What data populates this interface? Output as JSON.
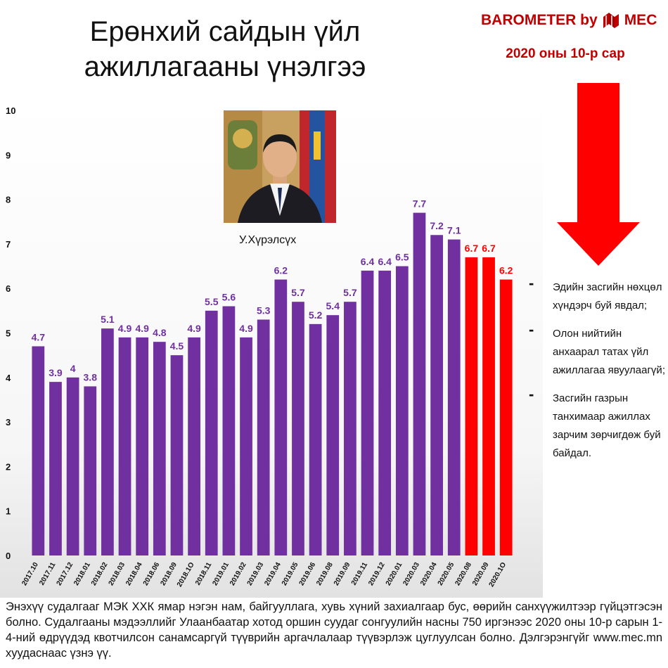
{
  "header": {
    "title_line1": "Ерөнхий сайдын үйл",
    "title_line2": "ажиллагааны үнэлгээ",
    "brand": "BAROMETER by",
    "brand_logo_text": "MEC",
    "subtitle": "2020 оны 10-р сар"
  },
  "photo": {
    "caption": "У.Хүрэлсүх"
  },
  "notes": [
    "Эдийн засгийн нөхцөл хүндэрч буй явдал;",
    "Олон нийтийн анхаарал татах үйл ажиллагаа явуулаагүй;",
    "Засгийн газрын танхимаар ажиллах зарчим зөрчигдөж буй байдал."
  ],
  "footer": "Энэхүү судалгааг МЭК ХХК ямар нэгэн нам, байгууллага, хувь хүний захиалгаар бус, өөрийн санхүүжилтээр гүйцэтгэсэн болно. Судалгааны мэдээллийг Улаанбаатар хотод оршин суудаг сонгуулийн насны 750 иргэнээс 2020 оны 10-р сарын 1-4-ний өдрүүдэд квотчилсон санамсаргүй түүврийн аргачлалаар түүвэрлэж цуглуулсан болно. Дэлгэрэнгүйг www.mec.mn хуудаснаас үзнэ үү.",
  "colors": {
    "bar": "#7030a0",
    "highlight": "#ff0000",
    "brand": "#c00000"
  },
  "chart_data": {
    "type": "bar",
    "title": "",
    "xlabel": "",
    "ylabel": "",
    "ylim": [
      0,
      10
    ],
    "yticks": [
      0,
      1,
      2,
      3,
      4,
      5,
      6,
      7,
      8,
      9,
      10
    ],
    "grid": false,
    "categories": [
      "2017.10",
      "2017.11",
      "2017.12",
      "2018.01",
      "2018.02",
      "2018.03",
      "2018.04",
      "2018.06",
      "2018.09",
      "2018.10",
      "2018.11",
      "2019.01",
      "2019.02",
      "2019.03",
      "2019.04",
      "2019.05",
      "2019.06",
      "2019.08",
      "2019.09",
      "2019.11",
      "2019.12",
      "2020.01",
      "2020.03",
      "2020.04",
      "2020.05",
      "2020.08",
      "2020.09",
      "2020.10"
    ],
    "category_labels": [
      "2017.10",
      "2017.11",
      "2017.12",
      "2018.01",
      "2018.02",
      "2018.03",
      "2018.04",
      "2018.06",
      "2018.09",
      "2018.1O",
      "2018.11",
      "2019.01",
      "2019.02",
      "2019.03",
      "2019.04",
      "2019.05",
      "2019.06",
      "2019.08",
      "2019.09",
      "2019.11",
      "2019.12",
      "2020.01",
      "2020.03",
      "2020.04",
      "2020.05",
      "2020.08",
      "2020.09",
      "2020.1O"
    ],
    "values": [
      4.7,
      3.9,
      4,
      3.8,
      5.1,
      4.9,
      4.9,
      4.8,
      4.5,
      4.9,
      5.5,
      5.6,
      4.9,
      5.3,
      6.2,
      5.7,
      5.2,
      5.4,
      5.7,
      6.4,
      6.4,
      6.5,
      7.7,
      7.2,
      7.1,
      6.7,
      6.7,
      6.2
    ],
    "value_labels": [
      "4.7",
      "3.9",
      "4",
      "3.8",
      "5.1",
      "4.9",
      "4.9",
      "4.8",
      "4.5",
      "4.9",
      "5.5",
      "5.6",
      "4.9",
      "5.3",
      "6.2",
      "5.7",
      "5.2",
      "5.4",
      "5.7",
      "6.4",
      "6.4",
      "6.5",
      "7.7",
      "7.2",
      "7.1",
      "6.7",
      "6.7",
      "6.2"
    ],
    "highlighted_categories": [
      "2020.08",
      "2020.09",
      "2020.10"
    ]
  }
}
